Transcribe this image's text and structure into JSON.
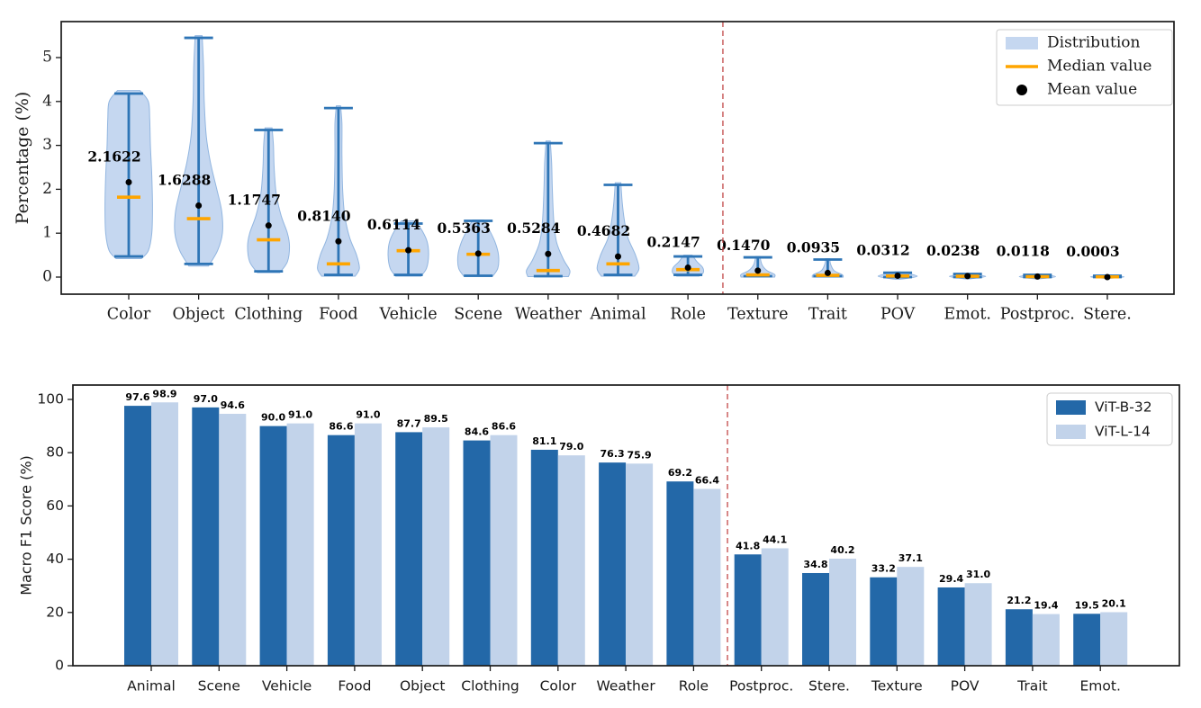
{
  "figure": {
    "background": "#ffffff"
  },
  "chart_data": [
    {
      "type": "violin",
      "title": "",
      "ylabel": "Percentage (%)",
      "ylim": [
        0,
        5.82
      ],
      "yticks": [
        0,
        1,
        2,
        3,
        4,
        5
      ],
      "grid": false,
      "legend_position": "top-right",
      "legend": [
        {
          "label": "Distribution",
          "marker": "patch",
          "color": "#c5d7f0"
        },
        {
          "label": "Median value",
          "marker": "line",
          "color": "#ffa500"
        },
        {
          "label": "Mean value",
          "marker": "dot",
          "color": "#000000"
        }
      ],
      "separator": {
        "after_index": 8,
        "color": "#c24545",
        "style": "dashed"
      },
      "colors": {
        "body_fill": "#c5d7f0",
        "body_edge": "#92b6e0",
        "whisker": "#2e75b6",
        "median": "#ffa500",
        "mean": "#000000"
      },
      "categories": [
        {
          "label": "Color",
          "mean_label": "2.1622",
          "median": 1.82,
          "min": 0.47,
          "max": 4.18,
          "shape": [
            [
              0.42,
              0.18
            ],
            [
              0.6,
              0.28
            ],
            [
              1.0,
              0.33
            ],
            [
              1.6,
              0.34
            ],
            [
              2.3,
              0.33
            ],
            [
              3.0,
              0.31
            ],
            [
              3.6,
              0.3
            ],
            [
              4.0,
              0.28
            ],
            [
              4.25,
              0.16
            ]
          ]
        },
        {
          "label": "Object",
          "mean_label": "1.6288",
          "median": 1.33,
          "min": 0.3,
          "max": 5.45,
          "shape": [
            [
              0.25,
              0.14
            ],
            [
              0.6,
              0.27
            ],
            [
              1.0,
              0.34
            ],
            [
              1.5,
              0.33
            ],
            [
              2.0,
              0.26
            ],
            [
              2.6,
              0.17
            ],
            [
              3.2,
              0.11
            ],
            [
              4.0,
              0.08
            ],
            [
              4.8,
              0.07
            ],
            [
              5.5,
              0.05
            ]
          ]
        },
        {
          "label": "Clothing",
          "mean_label": "1.1747",
          "median": 0.85,
          "min": 0.13,
          "max": 3.35,
          "shape": [
            [
              0.1,
              0.16
            ],
            [
              0.35,
              0.27
            ],
            [
              0.7,
              0.3
            ],
            [
              1.0,
              0.27
            ],
            [
              1.4,
              0.18
            ],
            [
              1.9,
              0.11
            ],
            [
              2.5,
              0.08
            ],
            [
              3.0,
              0.07
            ],
            [
              3.4,
              0.05
            ]
          ]
        },
        {
          "label": "Food",
          "mean_label": "0.8140",
          "median": 0.3,
          "min": 0.05,
          "max": 3.85,
          "shape": [
            [
              0.02,
              0.24
            ],
            [
              0.2,
              0.3
            ],
            [
              0.5,
              0.26
            ],
            [
              0.9,
              0.16
            ],
            [
              1.4,
              0.09
            ],
            [
              2.0,
              0.06
            ],
            [
              2.8,
              0.05
            ],
            [
              3.5,
              0.05
            ],
            [
              3.9,
              0.03
            ]
          ]
        },
        {
          "label": "Vehicle",
          "mean_label": "0.6114",
          "median": 0.6,
          "min": 0.05,
          "max": 1.22,
          "shape": [
            [
              0.02,
              0.18
            ],
            [
              0.2,
              0.26
            ],
            [
              0.5,
              0.29
            ],
            [
              0.8,
              0.27
            ],
            [
              1.05,
              0.2
            ],
            [
              1.28,
              0.1
            ]
          ]
        },
        {
          "label": "Scene",
          "mean_label": "0.5363",
          "median": 0.52,
          "min": 0.03,
          "max": 1.28,
          "shape": [
            [
              0.01,
              0.2
            ],
            [
              0.2,
              0.28
            ],
            [
              0.5,
              0.29
            ],
            [
              0.8,
              0.24
            ],
            [
              1.1,
              0.15
            ],
            [
              1.3,
              0.08
            ]
          ]
        },
        {
          "label": "Weather",
          "mean_label": "0.5284",
          "median": 0.15,
          "min": 0.02,
          "max": 3.05,
          "shape": [
            [
              0.01,
              0.29
            ],
            [
              0.15,
              0.31
            ],
            [
              0.4,
              0.22
            ],
            [
              0.8,
              0.12
            ],
            [
              1.3,
              0.08
            ],
            [
              2.0,
              0.06
            ],
            [
              2.6,
              0.05
            ],
            [
              3.1,
              0.03
            ]
          ]
        },
        {
          "label": "Animal",
          "mean_label": "0.4682",
          "median": 0.3,
          "min": 0.05,
          "max": 2.1,
          "shape": [
            [
              0.02,
              0.24
            ],
            [
              0.2,
              0.3
            ],
            [
              0.5,
              0.25
            ],
            [
              0.9,
              0.14
            ],
            [
              1.3,
              0.09
            ],
            [
              1.7,
              0.06
            ],
            [
              2.15,
              0.04
            ]
          ]
        },
        {
          "label": "Role",
          "mean_label": "0.2147",
          "median": 0.17,
          "min": 0.05,
          "max": 0.47,
          "shape": [
            [
              0.02,
              0.16
            ],
            [
              0.1,
              0.22
            ],
            [
              0.22,
              0.21
            ],
            [
              0.35,
              0.13
            ],
            [
              0.5,
              0.06
            ]
          ]
        },
        {
          "label": "Texture",
          "mean_label": "0.1470",
          "median": 0.05,
          "min": 0.02,
          "max": 0.45,
          "shape": [
            [
              0.0,
              0.24
            ],
            [
              0.06,
              0.24
            ],
            [
              0.15,
              0.13
            ],
            [
              0.28,
              0.06
            ],
            [
              0.47,
              0.03
            ]
          ]
        },
        {
          "label": "Trait",
          "mean_label": "0.0935",
          "median": 0.04,
          "min": 0.02,
          "max": 0.4,
          "shape": [
            [
              0.0,
              0.22
            ],
            [
              0.05,
              0.21
            ],
            [
              0.15,
              0.09
            ],
            [
              0.3,
              0.04
            ],
            [
              0.42,
              0.03
            ]
          ]
        },
        {
          "label": "POV",
          "mean_label": "0.0312",
          "median": 0.025,
          "min": 0.0,
          "max": 0.1,
          "shape": [
            [
              -0.05,
              0.03
            ],
            [
              0.02,
              0.28
            ],
            [
              0.12,
              0.03
            ]
          ]
        },
        {
          "label": "Emot.",
          "mean_label": "0.0238",
          "median": 0.02,
          "min": 0.0,
          "max": 0.07,
          "shape": [
            [
              -0.04,
              0.03
            ],
            [
              0.015,
              0.26
            ],
            [
              0.08,
              0.03
            ]
          ]
        },
        {
          "label": "Postproc.",
          "mean_label": "0.0118",
          "median": 0.01,
          "min": 0.0,
          "max": 0.05,
          "shape": [
            [
              -0.04,
              0.03
            ],
            [
              0.01,
              0.26
            ],
            [
              0.07,
              0.03
            ]
          ]
        },
        {
          "label": "Stere.",
          "mean_label": "0.0003",
          "median": 0.005,
          "min": 0.0,
          "max": 0.03,
          "shape": [
            [
              -0.03,
              0.03
            ],
            [
              0.005,
              0.24
            ],
            [
              0.05,
              0.03
            ]
          ]
        }
      ]
    },
    {
      "type": "bar",
      "title": "",
      "ylabel": "Macro F1 Score (%)",
      "ylim": [
        0,
        105.4
      ],
      "yticks": [
        0,
        20,
        40,
        60,
        80,
        100
      ],
      "grid": false,
      "legend_position": "top-right",
      "separator": {
        "after_index": 8,
        "color": "#c24545",
        "style": "dashed"
      },
      "categories": [
        "Animal",
        "Scene",
        "Vehicle",
        "Food",
        "Object",
        "Clothing",
        "Color",
        "Weather",
        "Role",
        "Postproc.",
        "Stere.",
        "Texture",
        "POV",
        "Trait",
        "Emot."
      ],
      "series": [
        {
          "name": "ViT-B-32",
          "color": "#2368a8",
          "values": [
            "97.6",
            "97.0",
            "90.0",
            "86.6",
            "87.7",
            "84.6",
            "81.1",
            "76.3",
            "69.2",
            "41.8",
            "34.8",
            "33.2",
            "29.4",
            "21.2",
            "19.5"
          ]
        },
        {
          "name": "ViT-L-14",
          "color": "#c2d3ea",
          "values": [
            "98.9",
            "94.6",
            "91.0",
            "91.0",
            "89.5",
            "86.6",
            "79.0",
            "75.9",
            "66.4",
            "44.1",
            "40.2",
            "37.1",
            "31.0",
            "19.4",
            "20.1"
          ]
        }
      ]
    }
  ]
}
